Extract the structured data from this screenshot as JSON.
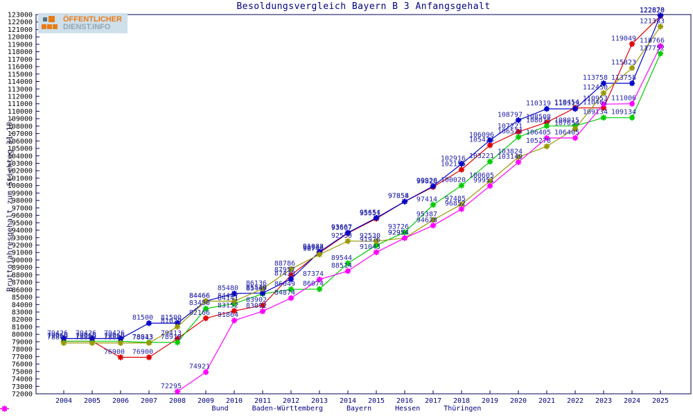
{
  "title": "Besoldungsvergleich Bayern B 3 Anfangsgehalt",
  "logo": {
    "line1": "ÖFFENTLICHER",
    "line2": "DIENST.INFO"
  },
  "y_axis": {
    "label": "Bruttojahresgehalt zum Stichtag 31.10.",
    "min": 72000,
    "max": 123000,
    "step": 1000
  },
  "colors": {
    "label_text": "#2222aa",
    "axis_frame": "#000055",
    "tick_text": "#000000",
    "year_text": "#000080"
  },
  "legend": {
    "items": [
      {
        "label": "Bund",
        "color": "#e00000"
      },
      {
        "label": "Baden-Württemberg",
        "color": "#00cc00"
      },
      {
        "label": "Bayern",
        "color": "#0000cc"
      },
      {
        "label": "Hessen",
        "color": "#999900"
      },
      {
        "label": "Thüringen",
        "color": "#ff00ff"
      }
    ]
  },
  "chart_data": {
    "type": "line",
    "title": "Besoldungsvergleich Bayern B 3 Anfangsgehalt",
    "xlabel": "",
    "ylabel": "Bruttojahresgehalt zum Stichtag 31.10.",
    "x": [
      2004,
      2005,
      2006,
      2007,
      2008,
      2009,
      2010,
      2011,
      2012,
      2013,
      2014,
      2015,
      2016,
      2017,
      2018,
      2019,
      2020,
      2021,
      2022,
      2023,
      2024,
      2025
    ],
    "ylim": [
      72000,
      123000
    ],
    "ytick_step": 1000,
    "grid": false,
    "legend_position": "bottom",
    "point_labels": true,
    "series": [
      {
        "name": "Bund",
        "color": "#e00000",
        "values": [
          79066,
          79066,
          76900,
          76900,
          79413,
          82166,
          83152,
          83902,
          87957,
          90944,
          93607,
          95551,
          97854,
          99826,
          102155,
          105424,
          107221,
          108508,
          110454,
          110461,
          119049,
          122820
        ]
      },
      {
        "name": "Baden-Württemberg",
        "color": "#00cc00",
        "values": [
          79066,
          79066,
          79066,
          78913,
          78918,
          83450,
          84141,
          85449,
          86049,
          86074,
          89544,
          91976,
          93726,
          97414,
          100020,
          103221,
          106524,
          108015,
          108015,
          109134,
          109134,
          117752
        ]
      },
      {
        "name": "Bayern",
        "color": "#0000cc",
        "values": [
          79426,
          79426,
          79426,
          81500,
          81500,
          84466,
          85480,
          85549,
          87438,
          91088,
          93667,
          95654,
          97858,
          99920,
          102916,
          106096,
          108797,
          110319,
          110319,
          113758,
          113758,
          122878
        ]
      },
      {
        "name": "Hessen",
        "color": "#999900",
        "values": [
          78843,
          78843,
          78843,
          78843,
          81029,
          84466,
          84447,
          86136,
          88786,
          90744,
          92530,
          92530,
          92954,
          95387,
          97485,
          100605,
          103824,
          105278,
          107654,
          112450,
          115823,
          121383
        ]
      },
      {
        "name": "Thüringen",
        "color": "#ff00ff",
        "values": [
          null,
          null,
          null,
          null,
          72295,
          74921,
          81864,
          83092,
          84874,
          87374,
          88514,
          91043,
          92954,
          94628,
          96852,
          99951,
          103149,
          106405,
          106405,
          110953,
          111006,
          118766
        ]
      }
    ]
  }
}
